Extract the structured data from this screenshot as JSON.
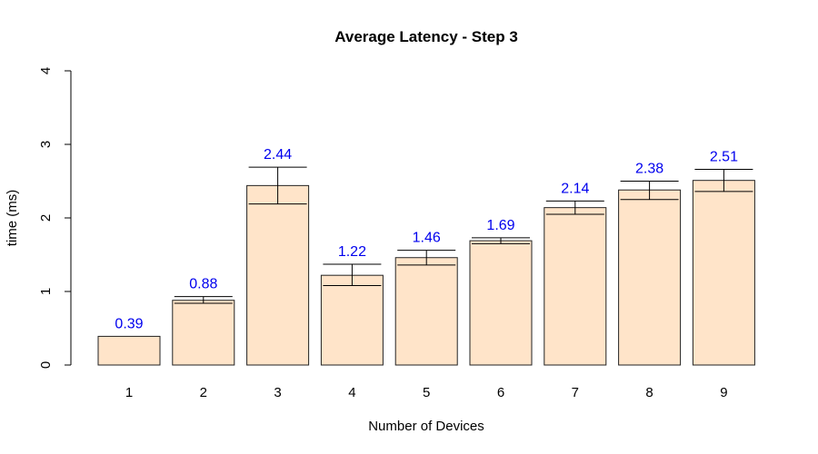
{
  "chart_data": {
    "type": "bar",
    "title": "Average Latency - Step 3",
    "xlabel": "Number of Devices",
    "ylabel": "time (ms)",
    "categories": [
      "1",
      "2",
      "3",
      "4",
      "5",
      "6",
      "7",
      "8",
      "9"
    ],
    "values": [
      0.39,
      0.88,
      2.44,
      1.22,
      1.46,
      1.69,
      2.14,
      2.38,
      2.51
    ],
    "data_labels": [
      "0.39",
      "0.88",
      "2.44",
      "1.22",
      "1.46",
      "1.69",
      "2.14",
      "2.38",
      "2.51"
    ],
    "error_low": [
      0.39,
      0.84,
      2.19,
      1.08,
      1.36,
      1.65,
      2.05,
      2.25,
      2.36
    ],
    "error_high": [
      0.39,
      0.93,
      2.69,
      1.37,
      1.56,
      1.73,
      2.23,
      2.5,
      2.66
    ],
    "ylim": [
      0,
      4
    ],
    "yticks": [
      "0",
      "1",
      "2",
      "3",
      "4"
    ],
    "grid": false,
    "legend": "none",
    "colors": {
      "bar_fill": "#ffe4c9",
      "bar_stroke": "#222222",
      "data_label": "#0000ee",
      "error_bar": "#000000"
    }
  }
}
